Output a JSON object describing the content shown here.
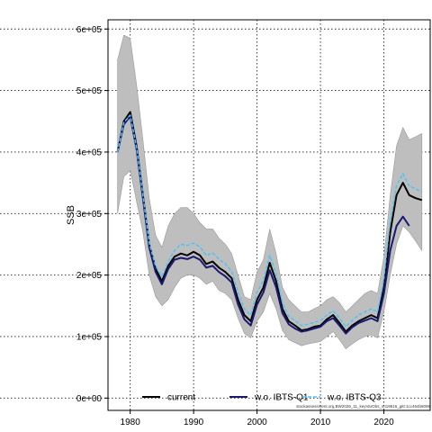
{
  "chart_data": {
    "type": "line",
    "title": "",
    "xlabel": "",
    "ylabel": "SSB",
    "xlim": [
      1976.5,
      2027.3
    ],
    "ylim": [
      -20000,
      615000
    ],
    "xticks": [
      1980,
      1990,
      2000,
      2010,
      2020
    ],
    "yticks": [
      0,
      100000,
      200000,
      300000,
      400000,
      500000,
      600000
    ],
    "ytick_labels": [
      "0e+00",
      "1e+05",
      "2e+05",
      "3e+05",
      "4e+05",
      "5e+05",
      "6e+05"
    ],
    "grid": true,
    "legend_position": "bottom",
    "watermark": "stockassessment.org,BW2026_11_keyVarObs_s.t19616_gitt:1cc464b8099",
    "x": [
      1978,
      1979,
      1980,
      1981,
      1982,
      1983,
      1984,
      1985,
      1986,
      1987,
      1988,
      1989,
      1990,
      1991,
      1992,
      1993,
      1994,
      1995,
      1996,
      1997,
      1998,
      1999,
      2000,
      2001,
      2002,
      2003,
      2004,
      2005,
      2006,
      2007,
      2008,
      2009,
      2010,
      2011,
      2012,
      2013,
      2014,
      2015,
      2016,
      2017,
      2018,
      2019,
      2020,
      2021,
      2022,
      2023,
      2024,
      2025,
      2026
    ],
    "band": {
      "name": "confidence interval",
      "color": "#bebebe",
      "lower": [
        300000,
        360000,
        370000,
        320000,
        270000,
        200000,
        165000,
        150000,
        160000,
        180000,
        195000,
        200000,
        200000,
        195000,
        185000,
        190000,
        175000,
        170000,
        160000,
        130000,
        105000,
        98000,
        125000,
        140000,
        170000,
        145000,
        110000,
        95000,
        90000,
        85000,
        88000,
        90000,
        92000,
        100000,
        108000,
        95000,
        80000,
        88000,
        95000,
        100000,
        103000,
        98000,
        140000,
        200000,
        250000,
        280000,
        270000,
        255000,
        240000
      ],
      "upper": [
        550000,
        590000,
        585000,
        510000,
        420000,
        325000,
        265000,
        245000,
        280000,
        300000,
        310000,
        310000,
        300000,
        285000,
        275000,
        275000,
        260000,
        250000,
        235000,
        200000,
        165000,
        160000,
        205000,
        225000,
        275000,
        235000,
        180000,
        160000,
        150000,
        140000,
        140000,
        145000,
        150000,
        160000,
        165000,
        155000,
        140000,
        150000,
        160000,
        170000,
        175000,
        170000,
        230000,
        330000,
        410000,
        440000,
        420000,
        425000,
        430000
      ]
    },
    "series": [
      {
        "name": "current",
        "color": "#000000",
        "dash": "",
        "width": 2,
        "values": [
          400000,
          450000,
          465000,
          410000,
          330000,
          250000,
          210000,
          190000,
          215000,
          230000,
          235000,
          232000,
          238000,
          232000,
          218000,
          222000,
          212000,
          205000,
          195000,
          160000,
          135000,
          125000,
          160000,
          180000,
          220000,
          190000,
          145000,
          125000,
          118000,
          110000,
          112000,
          116000,
          118000,
          128000,
          135000,
          122000,
          108000,
          118000,
          125000,
          130000,
          135000,
          130000,
          180000,
          270000,
          330000,
          350000,
          330000,
          325000,
          322000
        ]
      },
      {
        "name": "w.o. IBTS-Q1",
        "color": "#191970",
        "dash": "",
        "width": 2,
        "values": [
          400000,
          445000,
          458000,
          405000,
          325000,
          245000,
          205000,
          185000,
          210000,
          225000,
          228000,
          226000,
          230000,
          225000,
          212000,
          215000,
          205000,
          198000,
          188000,
          152000,
          128000,
          118000,
          152000,
          172000,
          208000,
          180000,
          138000,
          120000,
          113000,
          108000,
          110000,
          113000,
          116000,
          125000,
          130000,
          118000,
          105000,
          115000,
          122000,
          126000,
          130000,
          125000,
          170000,
          240000,
          280000,
          295000,
          280000,
          0,
          0
        ]
      },
      {
        "name": "w.o. IBTS-Q3",
        "color": "#4fc3f7",
        "dash": "4 2",
        "width": 1.5,
        "values": [
          400000,
          448000,
          460000,
          408000,
          330000,
          252000,
          215000,
          198000,
          222000,
          240000,
          250000,
          248000,
          252000,
          246000,
          232000,
          236000,
          226000,
          218000,
          206000,
          172000,
          145000,
          135000,
          172000,
          192000,
          232000,
          202000,
          155000,
          133000,
          126000,
          118000,
          120000,
          123000,
          126000,
          135000,
          142000,
          130000,
          116000,
          126000,
          135000,
          140000,
          145000,
          140000,
          195000,
          290000,
          345000,
          365000,
          345000,
          340000,
          335000
        ]
      }
    ],
    "series_lengths": [
      49,
      47,
      49
    ]
  }
}
